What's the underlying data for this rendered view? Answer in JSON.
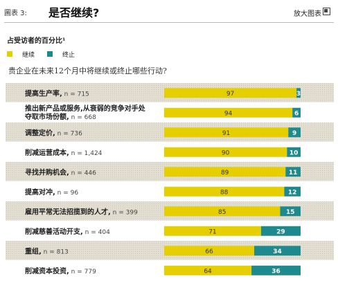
{
  "header": {
    "figure_label": "圖表 3:",
    "title": "是否继续?",
    "enlarge_label": "放大图表"
  },
  "subtitle": "占受访者的百分比¹",
  "legend": [
    {
      "label": "继续",
      "color": "#e6cf00"
    },
    {
      "label": "终止",
      "color": "#1f8a8e"
    }
  ],
  "question": "贵企业在未来12个月中将继续或终止哪些行动?",
  "colors": {
    "continue": "#e6cf00",
    "stop": "#1f8a8e",
    "stripe_bg": "#e3ded2",
    "label_text": "#222222"
  },
  "chart_data": {
    "type": "bar",
    "stacked": true,
    "orientation": "horizontal",
    "categories": [
      {
        "label": "提高生产率,",
        "n": "n = 715",
        "multiline": false
      },
      {
        "label": "推出新产品或服务,从衰弱的竞争对手处夺取市场份额,",
        "line1": "推出新产品或服务,从衰弱的竞争对手处",
        "line2": "夺取市场份额,",
        "n": "n = 668",
        "multiline": true
      },
      {
        "label": "调整定价,",
        "n": "n = 736",
        "multiline": false
      },
      {
        "label": "削减运营成本,",
        "n": "n = 1,424",
        "multiline": false
      },
      {
        "label": "寻找并购机会,",
        "n": "n = 446",
        "multiline": false
      },
      {
        "label": "提高对冲,",
        "n": "n = 96",
        "multiline": false
      },
      {
        "label": "雇用平常无法招揽到的人才,",
        "n": "n = 399",
        "multiline": false
      },
      {
        "label": "削减慈善活动开支,",
        "n": "n = 404",
        "multiline": false
      },
      {
        "label": "重组,",
        "n": "n = 813",
        "multiline": false
      },
      {
        "label": "削减资本投资,",
        "n": "n = 779",
        "multiline": false
      }
    ],
    "series": [
      {
        "name": "继续",
        "values": [
          97,
          94,
          91,
          90,
          89,
          88,
          85,
          71,
          66,
          64
        ]
      },
      {
        "name": "终止",
        "values": [
          3,
          6,
          9,
          10,
          11,
          12,
          15,
          29,
          34,
          36
        ]
      }
    ],
    "xlim": [
      0,
      100
    ],
    "grid": false
  }
}
